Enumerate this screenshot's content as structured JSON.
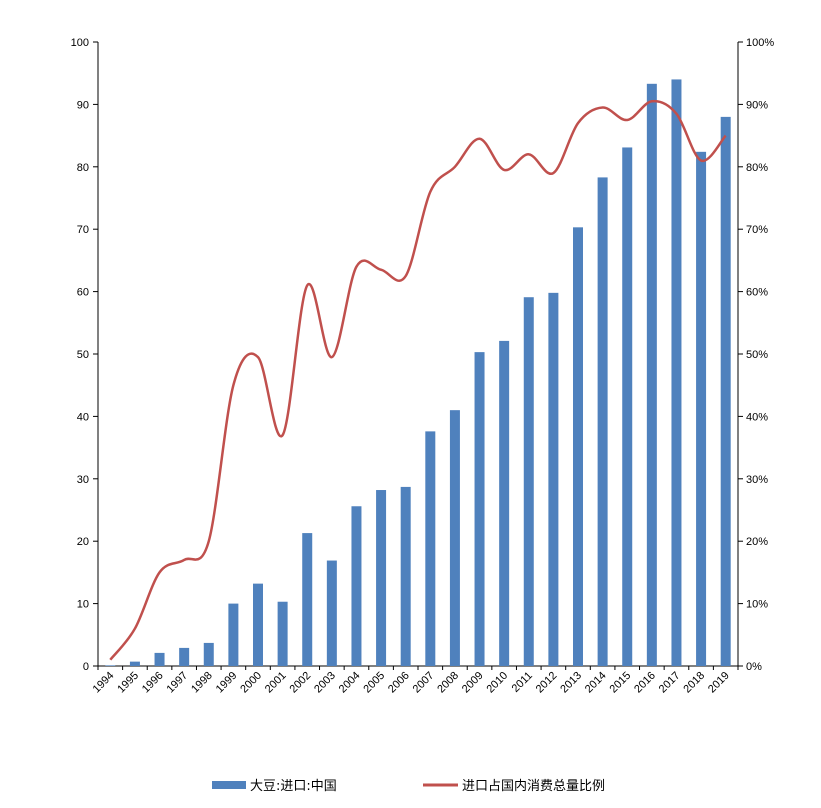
{
  "chart_data": {
    "type": "bar+line",
    "title": "",
    "categories": [
      "1994",
      "1995",
      "1996",
      "1997",
      "1998",
      "1999",
      "2000",
      "2001",
      "2002",
      "2003",
      "2004",
      "2005",
      "2006",
      "2007",
      "2008",
      "2009",
      "2010",
      "2011",
      "2012",
      "2013",
      "2014",
      "2015",
      "2016",
      "2017",
      "2018",
      "2019"
    ],
    "series": [
      {
        "name": "大豆:进口:中国",
        "type": "bar",
        "axis": "left",
        "color": "#4F81BD",
        "values": [
          0.1,
          0.7,
          2.1,
          2.9,
          3.7,
          10.0,
          13.2,
          10.3,
          21.3,
          16.9,
          25.6,
          28.2,
          28.7,
          37.6,
          41.0,
          50.3,
          52.1,
          59.1,
          59.8,
          70.3,
          78.3,
          83.1,
          93.3,
          94.0,
          82.4,
          88.0
        ]
      },
      {
        "name": "进口占国内消费总量比例",
        "type": "line",
        "axis": "right",
        "color": "#C0504D",
        "values": [
          0.01,
          0.06,
          0.15,
          0.17,
          0.2,
          0.45,
          0.495,
          0.37,
          0.61,
          0.495,
          0.64,
          0.635,
          0.625,
          0.76,
          0.8,
          0.845,
          0.795,
          0.82,
          0.79,
          0.87,
          0.895,
          0.875,
          0.905,
          0.885,
          0.81,
          0.85
        ]
      }
    ],
    "y_left": {
      "min": 0,
      "max": 100,
      "ticks": [
        "0",
        "10",
        "20",
        "30",
        "40",
        "50",
        "60",
        "70",
        "80",
        "90",
        "100"
      ]
    },
    "y_right": {
      "min": 0,
      "max": 1,
      "ticks": [
        "0%",
        "10%",
        "20%",
        "30%",
        "40%",
        "50%",
        "60%",
        "70%",
        "80%",
        "90%",
        "100%"
      ]
    },
    "xlabel": "",
    "ylabel": "",
    "grid": false,
    "legend": "bottom"
  }
}
